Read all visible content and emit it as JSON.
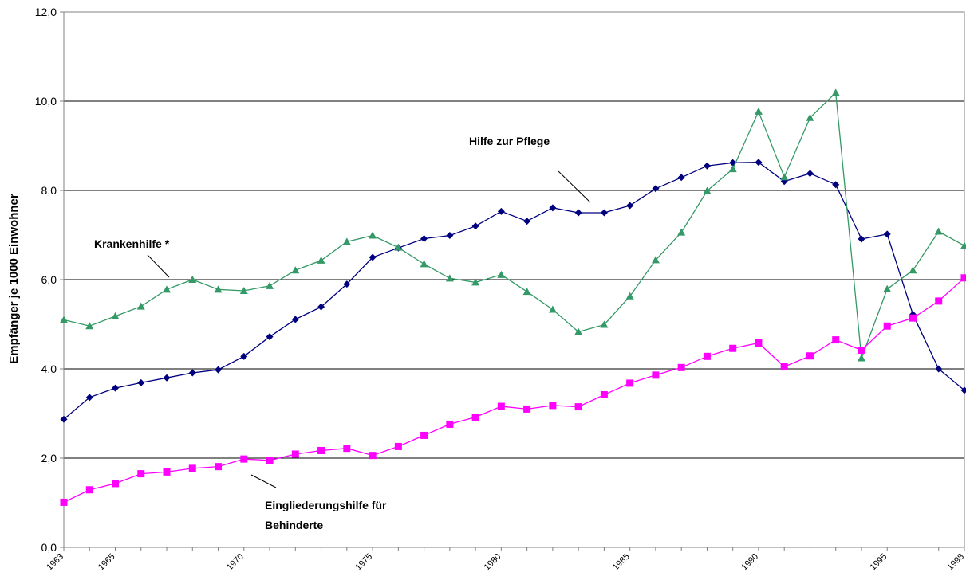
{
  "chart_data": {
    "type": "line",
    "ylabel": "Empfänger je 1000 Einwohner",
    "ylim": [
      0,
      12
    ],
    "yticks": [
      "0,0",
      "2,0",
      "4,0",
      "6,0",
      "8,0",
      "10,0",
      "12,0"
    ],
    "grid": true,
    "x": [
      1963,
      1964,
      1965,
      1966,
      1967,
      1968,
      1969,
      1970,
      1971,
      1972,
      1973,
      1974,
      1975,
      1976,
      1977,
      1978,
      1979,
      1980,
      1981,
      1982,
      1983,
      1984,
      1985,
      1986,
      1987,
      1988,
      1989,
      1990,
      1991,
      1992,
      1993,
      1994,
      1995,
      1996,
      1997,
      1998
    ],
    "xtick_labels": [
      {
        "x": 1963,
        "label": "1963"
      },
      {
        "x": 1965,
        "label": "1965"
      },
      {
        "x": 1970,
        "label": "1970"
      },
      {
        "x": 1975,
        "label": "1975"
      },
      {
        "x": 1980,
        "label": "1980"
      },
      {
        "x": 1985,
        "label": "1985"
      },
      {
        "x": 1990,
        "label": "1990"
      },
      {
        "x": 1995,
        "label": "1995"
      },
      {
        "x": 1998,
        "label": "1998"
      }
    ],
    "series": [
      {
        "name": "Hilfe zur Pflege",
        "color": "#00007f",
        "marker": "diamond",
        "values": [
          2.87,
          3.36,
          3.57,
          3.69,
          3.8,
          3.91,
          3.98,
          4.28,
          4.72,
          5.11,
          5.39,
          5.9,
          6.5,
          6.71,
          6.92,
          6.99,
          7.2,
          7.53,
          7.31,
          7.61,
          7.5,
          7.5,
          7.66,
          8.04,
          8.29,
          8.55,
          8.62,
          8.63,
          8.2,
          8.38,
          8.13,
          6.91,
          7.02,
          5.22,
          4.0,
          3.52
        ]
      },
      {
        "name": "Krankenhilfe *",
        "color": "#339966",
        "marker": "triangle",
        "values": [
          5.1,
          4.96,
          5.18,
          5.4,
          5.78,
          6.0,
          5.78,
          5.75,
          5.86,
          6.21,
          6.43,
          6.85,
          6.99,
          6.72,
          6.35,
          6.03,
          5.94,
          6.11,
          5.73,
          5.33,
          4.83,
          4.99,
          5.63,
          6.44,
          7.06,
          7.99,
          8.48,
          9.77,
          8.3,
          9.63,
          10.19,
          4.24,
          5.79,
          6.21,
          7.08,
          6.76
        ]
      },
      {
        "name": "Eingliederungshilfe für Behinderte",
        "color": "#ff00ff",
        "marker": "square",
        "values": [
          1.01,
          1.29,
          1.43,
          1.65,
          1.69,
          1.77,
          1.81,
          1.98,
          1.95,
          2.09,
          2.17,
          2.22,
          2.06,
          2.26,
          2.51,
          2.76,
          2.92,
          3.16,
          3.1,
          3.18,
          3.15,
          3.42,
          3.68,
          3.86,
          4.03,
          4.28,
          4.46,
          4.58,
          4.05,
          4.29,
          4.65,
          4.42,
          4.96,
          5.14,
          5.52,
          6.04
        ]
      }
    ],
    "annotations": {
      "pflege": "Hilfe zur Pflege",
      "kranken": "Krankenhilfe *",
      "eingl_line1": "Eingliederungshilfe für",
      "eingl_line2": "Behinderte"
    }
  }
}
